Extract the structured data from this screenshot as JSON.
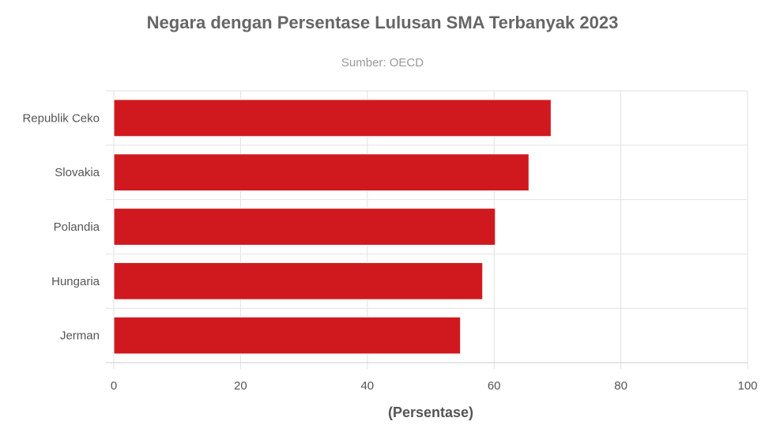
{
  "chart_data": {
    "type": "bar",
    "orientation": "horizontal",
    "title": "Negara dengan Persentase Lulusan SMA Terbanyak 2023",
    "subtitle": "Sumber: OECD",
    "xlabel": "(Persentase)",
    "ylabel": "",
    "categories": [
      "Republik Ceko",
      "Slovakia",
      "Polandia",
      "Hungaria",
      "Jerman"
    ],
    "values": [
      69,
      65.5,
      60.2,
      58.2,
      54.7
    ],
    "xlim": [
      0,
      100
    ],
    "xticks": [
      "0",
      "20",
      "40",
      "60",
      "80",
      "100"
    ],
    "grid": true,
    "legend": "none",
    "bar_color": "#d0191f"
  }
}
